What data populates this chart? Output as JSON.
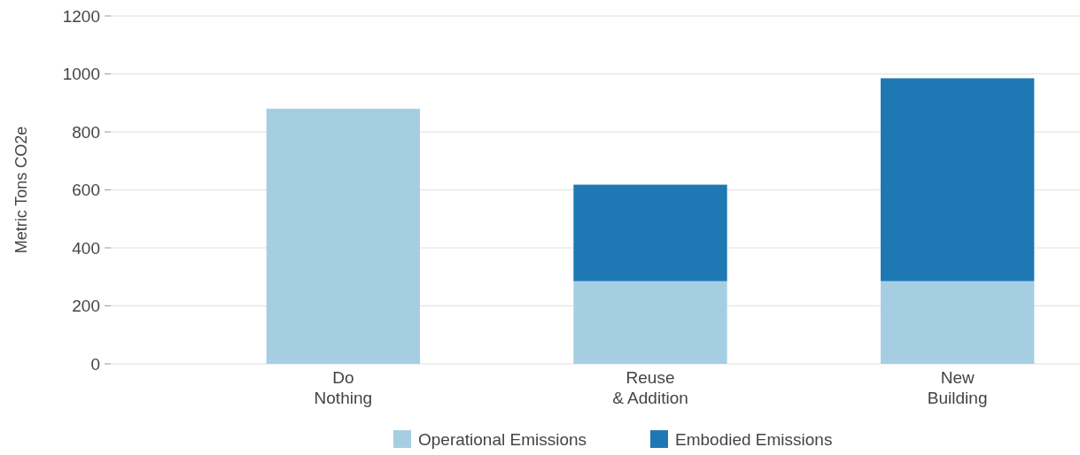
{
  "chart_data": {
    "type": "bar",
    "stacked": true,
    "ylabel": "Metric Tons CO2e",
    "categories": [
      "Do\nNothing",
      "Reuse\n& Addition",
      "New\nBuilding"
    ],
    "series": [
      {
        "name": "Operational Emissions",
        "color": "#a6cee3",
        "values": [
          880,
          285,
          285
        ]
      },
      {
        "name": "Embodied Emissions",
        "color": "#1f78b4",
        "values": [
          0,
          333,
          700
        ]
      }
    ],
    "ylim": [
      0,
      1200
    ],
    "yticks": [
      0,
      200,
      400,
      600,
      800,
      1000,
      1200
    ],
    "grid": "y",
    "legend": "bottom"
  }
}
